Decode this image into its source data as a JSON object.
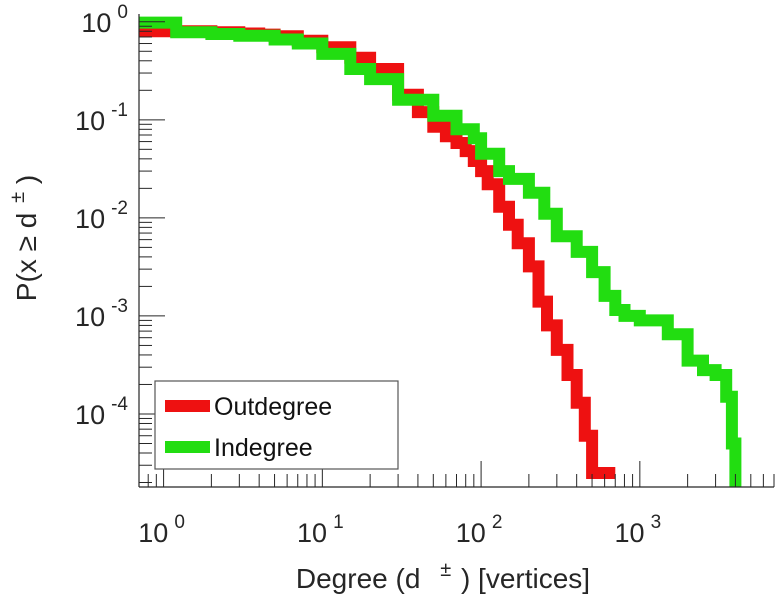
{
  "chart_data": {
    "type": "line",
    "title": "",
    "xlabel": "Degree (d ± ) [vertices]",
    "xlabel_base": "Degree (d",
    "xlabel_sup": "±",
    "xlabel_rest": ") [vertices]",
    "ylabel": "P(x ≥ d ± )",
    "ylabel_base": "P(x ≥ d",
    "ylabel_sup": "±",
    "ylabel_rest": ")",
    "xscale": "log",
    "yscale": "log",
    "xlim": [
      0.7,
      7000
    ],
    "ylim": [
      1.8e-05,
      1.2
    ],
    "x_ticks": [
      {
        "base": "10",
        "exp": "0",
        "value": 1
      },
      {
        "base": "10",
        "exp": "1",
        "value": 10
      },
      {
        "base": "10",
        "exp": "2",
        "value": 100
      },
      {
        "base": "10",
        "exp": "3",
        "value": 1000
      }
    ],
    "y_ticks": [
      {
        "base": "10",
        "exp": "0",
        "value": 1
      },
      {
        "base": "10",
        "exp": "-1",
        "value": 0.1
      },
      {
        "base": "10",
        "exp": "-2",
        "value": 0.01
      },
      {
        "base": "10",
        "exp": "-3",
        "value": 0.001
      },
      {
        "base": "10",
        "exp": "-4",
        "value": 0.0001
      }
    ],
    "grid": false,
    "legend_position": "bottom-left",
    "series": [
      {
        "name": "Outdegree",
        "color": "#ee1111",
        "x": [
          0.7,
          1,
          2,
          3,
          4,
          5,
          7,
          10,
          15,
          20,
          30,
          40,
          50,
          60,
          70,
          80,
          90,
          100,
          110,
          130,
          150,
          170,
          200,
          230,
          260,
          300,
          350,
          400,
          450,
          500,
          600,
          700
        ],
        "y": [
          0.8,
          0.8,
          0.78,
          0.76,
          0.74,
          0.71,
          0.64,
          0.55,
          0.43,
          0.33,
          0.18,
          0.12,
          0.085,
          0.068,
          0.058,
          0.048,
          0.038,
          0.03,
          0.022,
          0.013,
          0.0085,
          0.0055,
          0.0032,
          0.0014,
          0.0008,
          0.00045,
          0.00025,
          0.00013,
          6e-05,
          2.5e-05,
          2.5e-05,
          2.5e-05
        ]
      },
      {
        "name": "Indegree",
        "color": "#22dd11",
        "x": [
          0.7,
          1,
          1.2,
          2,
          3,
          5,
          7,
          10,
          15,
          20,
          30,
          50,
          70,
          90,
          100,
          130,
          150,
          200,
          250,
          300,
          400,
          500,
          600,
          700,
          800,
          1000,
          1500,
          2000,
          2500,
          3000,
          3500,
          3800,
          4000
        ],
        "y": [
          0.98,
          0.98,
          0.78,
          0.75,
          0.72,
          0.66,
          0.6,
          0.47,
          0.33,
          0.26,
          0.16,
          0.11,
          0.08,
          0.065,
          0.045,
          0.03,
          0.025,
          0.018,
          0.011,
          0.0065,
          0.0045,
          0.0028,
          0.0016,
          0.00115,
          0.001,
          0.0009,
          0.00065,
          0.00035,
          0.00028,
          0.00025,
          0.00015,
          5e-05,
          1.8e-05
        ]
      }
    ]
  }
}
